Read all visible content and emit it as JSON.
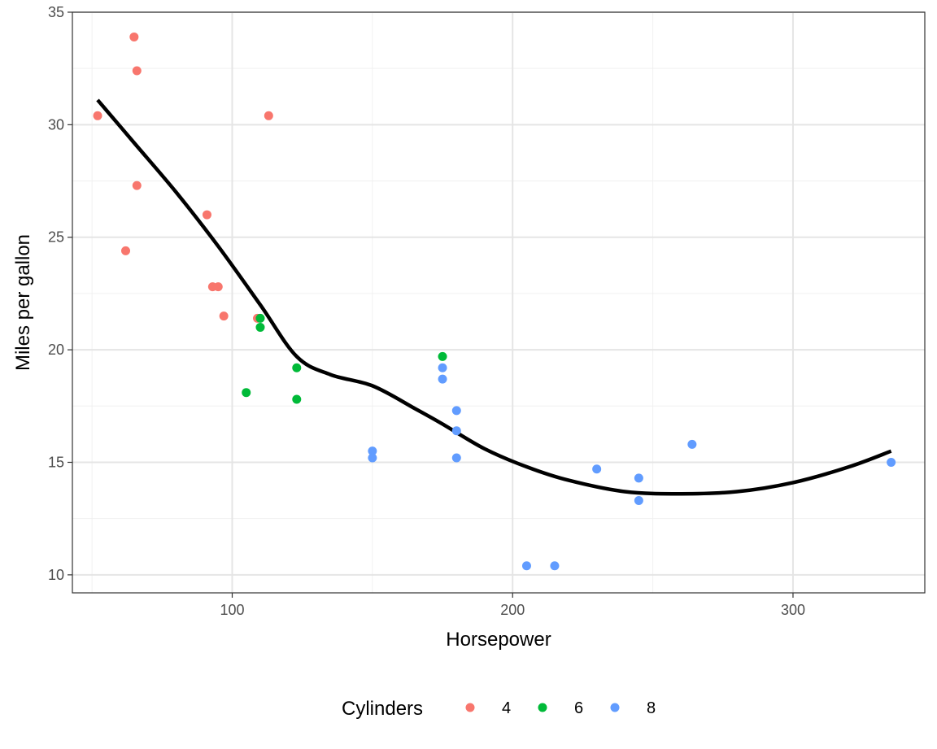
{
  "chart_data": {
    "type": "scatter",
    "title": "",
    "xlabel": "Horsepower",
    "ylabel": "Miles per gallon",
    "xlim": [
      43,
      347
    ],
    "ylim": [
      9.2,
      35
    ],
    "x_ticks": [
      100,
      200,
      300
    ],
    "y_ticks": [
      10,
      15,
      20,
      25,
      30,
      35
    ],
    "grid": true,
    "legend": {
      "title": "Cylinders",
      "position": "bottom"
    },
    "colors": {
      "4": "#F8766D",
      "6": "#00BA38",
      "8": "#619CFF",
      "smooth": "#000000"
    },
    "series": [
      {
        "name": "4",
        "points": [
          [
            52,
            30.4
          ],
          [
            62,
            24.4
          ],
          [
            65,
            33.9
          ],
          [
            66,
            32.4
          ],
          [
            66,
            27.3
          ],
          [
            91,
            26.0
          ],
          [
            93,
            22.8
          ],
          [
            95,
            22.8
          ],
          [
            97,
            21.5
          ],
          [
            109,
            21.4
          ],
          [
            113,
            30.4
          ]
        ]
      },
      {
        "name": "6",
        "points": [
          [
            105,
            18.1
          ],
          [
            110,
            21.4
          ],
          [
            110,
            21.0
          ],
          [
            123,
            19.2
          ],
          [
            123,
            17.8
          ],
          [
            175,
            19.7
          ]
        ]
      },
      {
        "name": "8",
        "points": [
          [
            150,
            15.5
          ],
          [
            150,
            15.2
          ],
          [
            175,
            19.2
          ],
          [
            175,
            18.7
          ],
          [
            180,
            17.3
          ],
          [
            180,
            16.4
          ],
          [
            180,
            15.2
          ],
          [
            205,
            10.4
          ],
          [
            215,
            10.4
          ],
          [
            230,
            14.7
          ],
          [
            245,
            14.3
          ],
          [
            245,
            13.3
          ],
          [
            264,
            15.8
          ],
          [
            335,
            15.0
          ]
        ]
      }
    ],
    "smooth_line": {
      "name": "loess",
      "points": [
        [
          52,
          31.1
        ],
        [
          65,
          29.2
        ],
        [
          80,
          27.0
        ],
        [
          95,
          24.6
        ],
        [
          110,
          22.0
        ],
        [
          123,
          19.7
        ],
        [
          135,
          18.9
        ],
        [
          150,
          18.4
        ],
        [
          165,
          17.4
        ],
        [
          175,
          16.7
        ],
        [
          190,
          15.6
        ],
        [
          205,
          14.8
        ],
        [
          220,
          14.2
        ],
        [
          240,
          13.7
        ],
        [
          260,
          13.6
        ],
        [
          280,
          13.7
        ],
        [
          300,
          14.1
        ],
        [
          320,
          14.8
        ],
        [
          335,
          15.5
        ]
      ]
    }
  }
}
